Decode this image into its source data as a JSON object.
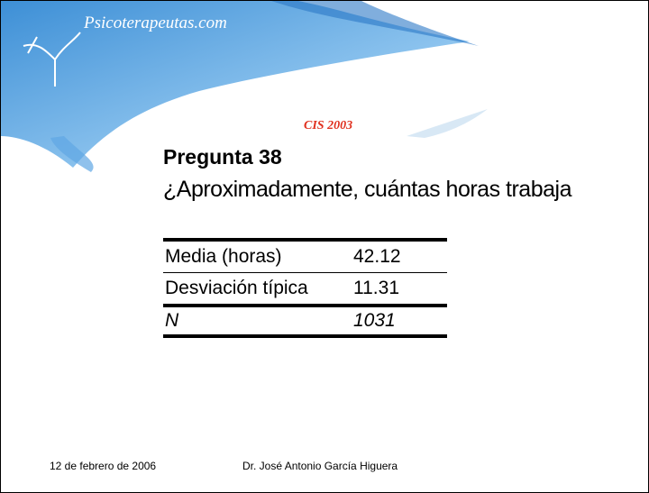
{
  "header": {
    "brand": "Psicoterapeutas.com",
    "source": "CIS 2003"
  },
  "question": {
    "title": "Pregunta 38",
    "text": "¿Aproximadamente, cuántas horas trabaja"
  },
  "table": {
    "rows": [
      [
        "Media (horas)",
        "42.12"
      ],
      [
        "Desviación típica",
        "11.31"
      ],
      [
        "N",
        "1031"
      ]
    ]
  },
  "footer": {
    "date": "12 de febrero de 2006",
    "author": "Dr. José Antonio García Higuera"
  }
}
